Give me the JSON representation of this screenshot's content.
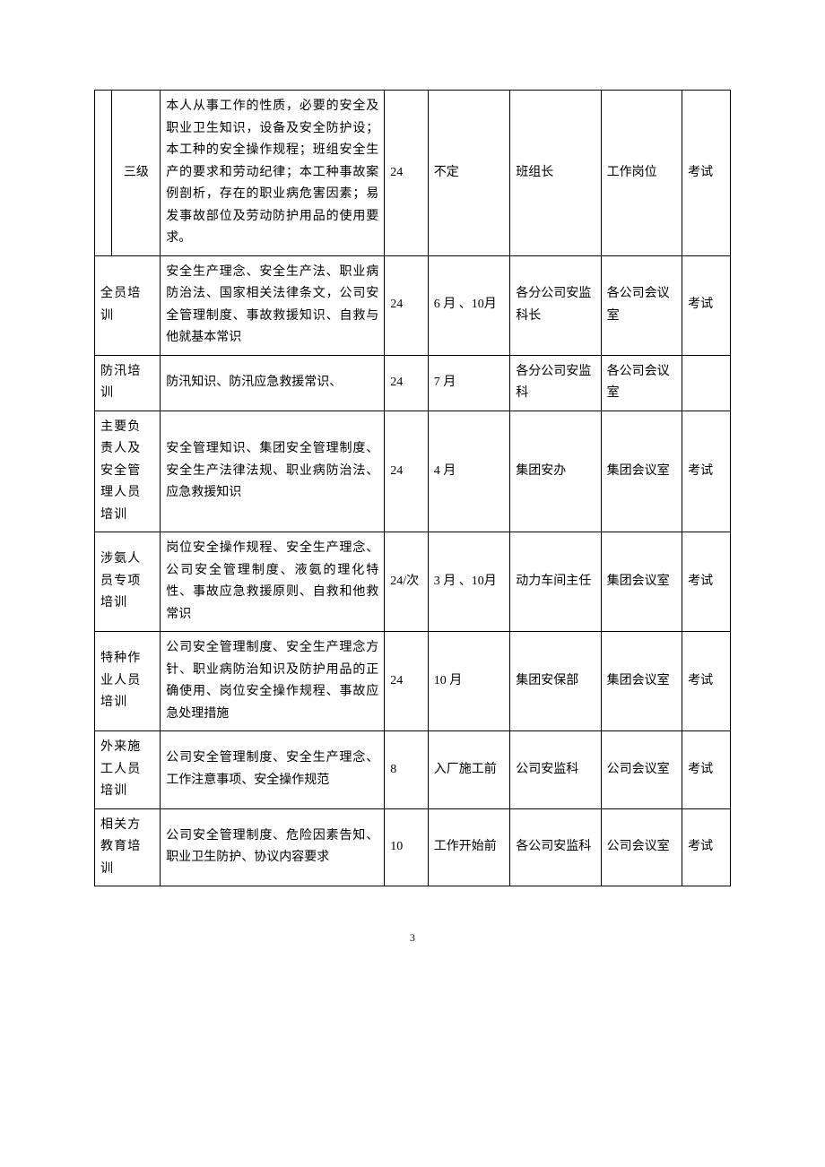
{
  "table": {
    "colors": {
      "border": "#000000",
      "text": "#000000",
      "background": "#ffffff"
    },
    "font": {
      "family": "SimSun",
      "size_pt": 10.5,
      "line_height": 1.75
    },
    "rows": [
      {
        "category_outer": "",
        "category_inner": "三级",
        "content": "本人从事工作的性质，必要的安全及职业卫生知识，设备及安全防护设；本工种的安全操作规程；班组安全生产的要求和劳动纪律；本工种事故案例剖析，存在的职业病危害因素；易发事故部位及劳动防护用品的使用要求。",
        "hours": "24",
        "time": "不定",
        "responsible": "班组长",
        "location": "工作岗位",
        "assessment": "考试"
      },
      {
        "category": "全员培训",
        "content": "安全生产理念、安全生产法、职业病防治法、国家相关法律条文，公司安全管理制度、事故救援知识、自救与他就基本常识",
        "hours": "24",
        "time": "6 月 、10月",
        "responsible": "各分公司安监科长",
        "location": "各公司会议室",
        "assessment": "考试"
      },
      {
        "category": "防汛培训",
        "content": "防汛知识、防汛应急救援常识、",
        "hours": "24",
        "time": "7 月",
        "responsible": "各分公司安监科",
        "location": "各公司会议室",
        "assessment": ""
      },
      {
        "category": "主要负责人及安全管理人员培训",
        "content": "安全管理知识、集团安全管理制度、安全生产法律法规、职业病防治法、应急救援知识",
        "hours": "24",
        "time": "4 月",
        "responsible": "集团安办",
        "location": "集团会议室",
        "assessment": "考试"
      },
      {
        "category": "涉氨人员专项培训",
        "content": "岗位安全操作规程、安全生产理念、公司安全管理制度、液氨的理化特性、事故应急救援原则、自救和他救常识",
        "hours": "24/次",
        "time": "3 月 、10月",
        "responsible": "动力车间主任",
        "location": "集团会议室",
        "assessment": "考试"
      },
      {
        "category": "特种作业人员培训",
        "content": "公司安全管理制度、安全生产理念方针、职业病防治知识及防护用品的正确使用、岗位安全操作规程、事故应急处理措施",
        "hours": "24",
        "time": "10 月",
        "responsible": "集团安保部",
        "location": "集团会议室",
        "assessment": "考试"
      },
      {
        "category": "外来施工人员培训",
        "content": "公司安全管理制度、安全生产理念、工作注意事项、安全操作规范",
        "hours": "8",
        "time": "入厂施工前",
        "responsible": "公司安监科",
        "location": "公司会议室",
        "assessment": "考试"
      },
      {
        "category": "相关方教育培训",
        "content": "公司安全管理制度、危险因素告知、职业卫生防护、协议内容要求",
        "hours": "10",
        "time": "工作开始前",
        "responsible": "各公司安监科",
        "location": "公司会议室",
        "assessment": "考试"
      }
    ]
  },
  "page_number": "3"
}
